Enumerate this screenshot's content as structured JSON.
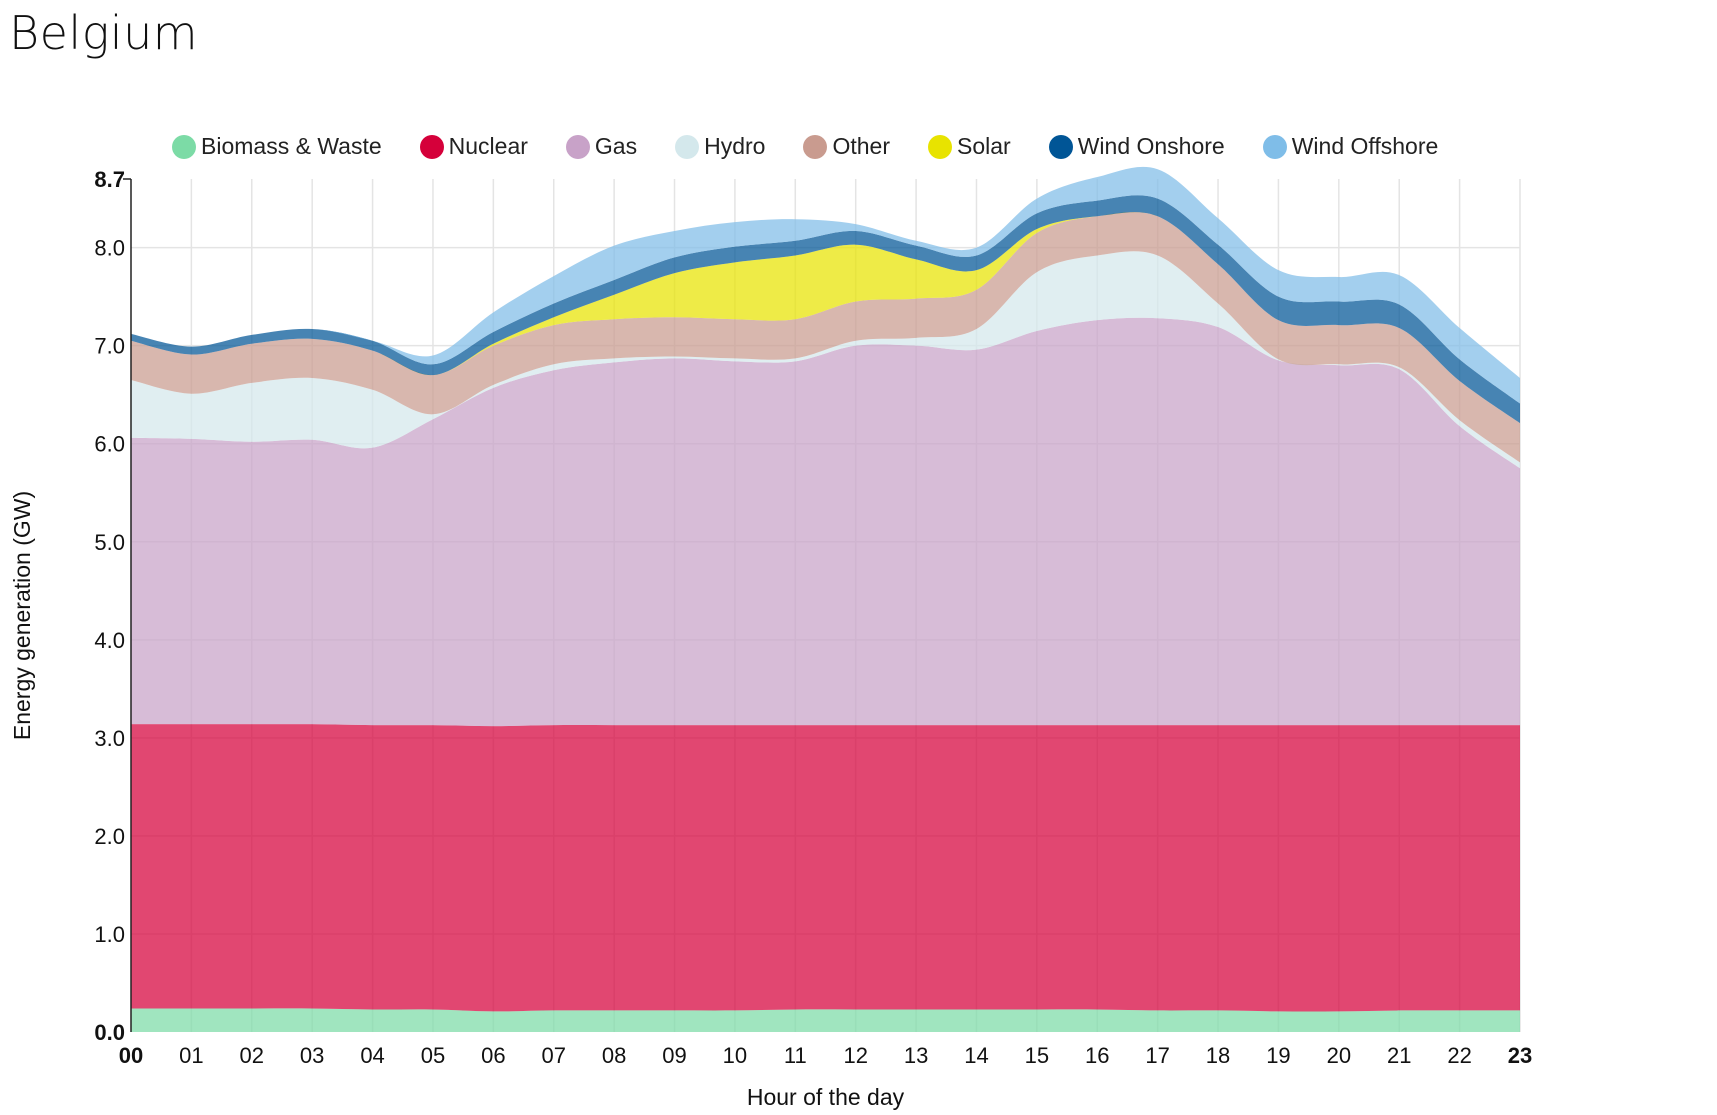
{
  "page": {
    "title": "Belgium"
  },
  "chart_data": {
    "type": "area",
    "stacked": true,
    "title": "Belgium",
    "xlabel": "Hour of the day",
    "ylabel": "Energy generation (GW)",
    "x": [
      "00",
      "01",
      "02",
      "03",
      "04",
      "05",
      "06",
      "07",
      "08",
      "09",
      "10",
      "11",
      "12",
      "13",
      "14",
      "15",
      "16",
      "17",
      "18",
      "19",
      "20",
      "21",
      "22",
      "23"
    ],
    "y_ticks": [
      "0.0",
      "1.0",
      "2.0",
      "3.0",
      "4.0",
      "5.0",
      "6.0",
      "7.0",
      "8.0",
      "8.7"
    ],
    "ylim": [
      0,
      8.7
    ],
    "grid": true,
    "legend_position": "top",
    "series": [
      {
        "name": "Biomass & Waste",
        "color": "#7cdba6",
        "values": [
          0.24,
          0.24,
          0.24,
          0.24,
          0.23,
          0.23,
          0.21,
          0.22,
          0.22,
          0.22,
          0.22,
          0.23,
          0.23,
          0.23,
          0.23,
          0.23,
          0.23,
          0.22,
          0.22,
          0.21,
          0.21,
          0.22,
          0.22,
          0.22
        ]
      },
      {
        "name": "Nuclear",
        "color": "#d5003a",
        "values": [
          2.9,
          2.9,
          2.9,
          2.9,
          2.9,
          2.9,
          2.91,
          2.91,
          2.91,
          2.91,
          2.91,
          2.9,
          2.9,
          2.9,
          2.9,
          2.9,
          2.9,
          2.91,
          2.91,
          2.92,
          2.92,
          2.91,
          2.91,
          2.91
        ]
      },
      {
        "name": "Gas",
        "color": "#c8a2c8",
        "values": [
          2.92,
          2.91,
          2.88,
          2.9,
          2.83,
          3.12,
          3.45,
          3.62,
          3.7,
          3.74,
          3.71,
          3.71,
          3.87,
          3.87,
          3.83,
          4.02,
          4.13,
          4.15,
          4.06,
          3.72,
          3.67,
          3.63,
          3.05,
          2.62
        ]
      },
      {
        "name": "Hydro",
        "color": "#d4e8ec",
        "values": [
          0.59,
          0.46,
          0.6,
          0.63,
          0.59,
          0.05,
          0.03,
          0.06,
          0.04,
          0.02,
          0.03,
          0.03,
          0.05,
          0.08,
          0.21,
          0.6,
          0.66,
          0.64,
          0.24,
          0.01,
          0.01,
          0.02,
          0.06,
          0.06
        ]
      },
      {
        "name": "Other",
        "color": "#c99b8f",
        "values": [
          0.4,
          0.4,
          0.4,
          0.4,
          0.4,
          0.4,
          0.4,
          0.4,
          0.4,
          0.4,
          0.4,
          0.4,
          0.4,
          0.4,
          0.4,
          0.4,
          0.4,
          0.4,
          0.4,
          0.4,
          0.4,
          0.4,
          0.4,
          0.4
        ]
      },
      {
        "name": "Solar",
        "color": "#e8e300",
        "values": [
          0.0,
          0.0,
          0.0,
          0.0,
          0.0,
          0.0,
          0.02,
          0.08,
          0.25,
          0.45,
          0.58,
          0.65,
          0.58,
          0.4,
          0.2,
          0.04,
          0.0,
          0.0,
          0.0,
          0.0,
          0.0,
          0.0,
          0.0,
          0.0
        ]
      },
      {
        "name": "Wind Onshore",
        "color": "#005596",
        "values": [
          0.07,
          0.08,
          0.09,
          0.1,
          0.1,
          0.11,
          0.12,
          0.14,
          0.15,
          0.16,
          0.16,
          0.15,
          0.14,
          0.14,
          0.15,
          0.16,
          0.16,
          0.18,
          0.2,
          0.24,
          0.24,
          0.24,
          0.22,
          0.2
        ]
      },
      {
        "name": "Wind Offshore",
        "color": "#7fbde8",
        "values": [
          0.0,
          0.0,
          0.0,
          0.0,
          0.0,
          0.09,
          0.2,
          0.28,
          0.35,
          0.27,
          0.25,
          0.22,
          0.07,
          0.05,
          0.08,
          0.15,
          0.24,
          0.3,
          0.27,
          0.27,
          0.25,
          0.3,
          0.32,
          0.26
        ]
      }
    ]
  }
}
